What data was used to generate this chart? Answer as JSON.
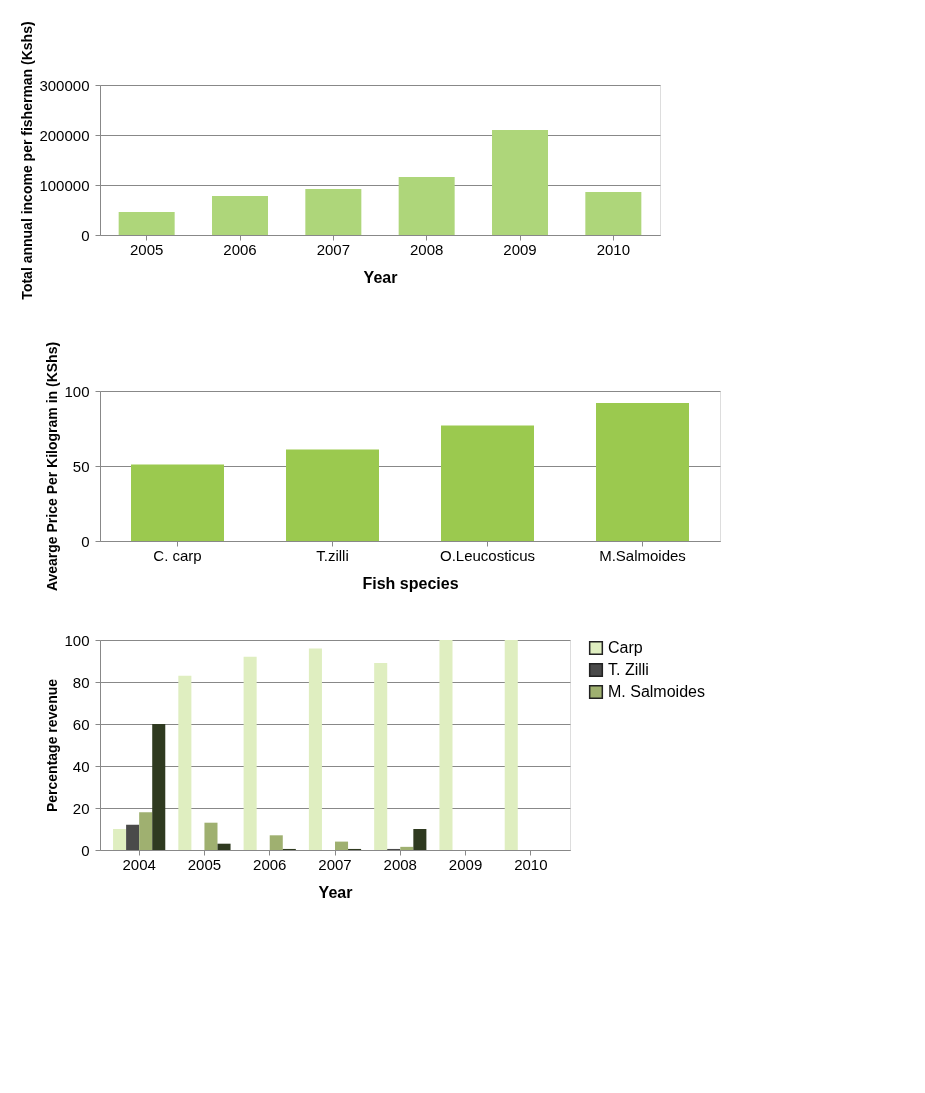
{
  "chart_data": [
    {
      "type": "bar",
      "categories": [
        "2005",
        "2006",
        "2007",
        "2008",
        "2009",
        "2010"
      ],
      "xlabel": "Year",
      "ylabel": "Total annual income per fisherman (Kshs)",
      "ylim": [
        0,
        300000
      ],
      "yticks": [
        0,
        100000,
        200000,
        300000
      ],
      "grid": "y",
      "series": [
        {
          "color": "#aed67a",
          "values": [
            46000,
            78000,
            92000,
            116000,
            210000,
            86000
          ]
        }
      ]
    },
    {
      "type": "bar",
      "categories": [
        "C. carp",
        "T.zilli",
        "O.Leucosticus",
        "M.Salmoides"
      ],
      "xlabel": "Fish species",
      "ylabel": "Avearge Price Per Kilogram in (KShs)",
      "ylim": [
        0,
        100
      ],
      "yticks": [
        0,
        50,
        100
      ],
      "grid": "y",
      "series": [
        {
          "color": "#9bc94f",
          "values": [
            51,
            61,
            77,
            92
          ]
        }
      ]
    },
    {
      "type": "bar",
      "categories": [
        "2004",
        "2005",
        "2006",
        "2007",
        "2008",
        "2009",
        "2010"
      ],
      "xlabel": "Year",
      "ylabel": "Percentage revenue",
      "ylim": [
        0,
        100
      ],
      "yticks": [
        0,
        20,
        40,
        60,
        80,
        100
      ],
      "grid": "y",
      "legend": "right",
      "series": [
        {
          "name": "Carp",
          "color": "#dfeec0",
          "values": [
            10,
            83,
            92,
            96,
            89,
            100,
            100
          ]
        },
        {
          "name": "T. Zilli",
          "color": "#4a4a4a",
          "values": [
            12,
            0,
            0,
            0,
            0.5,
            0,
            0
          ]
        },
        {
          "name": "M. Salmoides",
          "color": "#9fb070",
          "values": [
            18,
            13,
            7,
            4,
            1.5,
            0,
            0
          ]
        },
        {
          "color": "#2f3a20",
          "values": [
            60,
            3,
            0.5,
            0.5,
            10,
            0,
            0
          ]
        }
      ]
    }
  ]
}
